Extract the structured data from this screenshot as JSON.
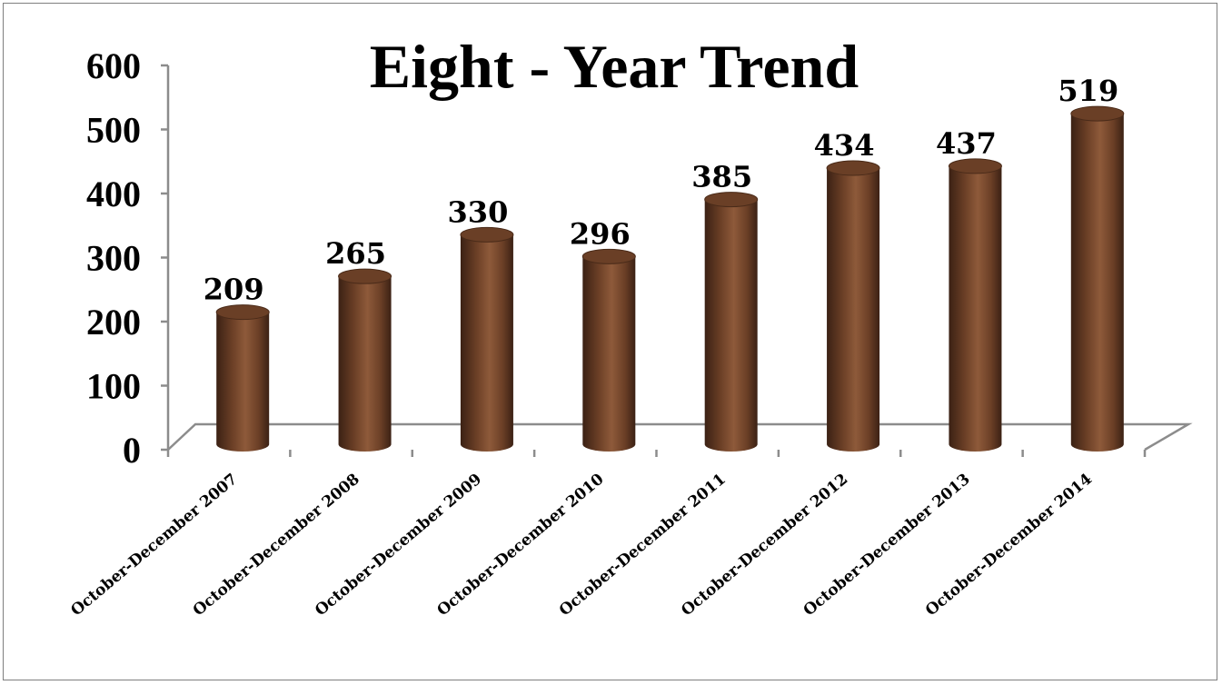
{
  "chart_data": {
    "type": "bar",
    "style": "3d-cylinder",
    "title": "Eight - Year Trend",
    "xlabel": "",
    "ylabel": "",
    "categories": [
      "October-December 2007",
      "October-December 2008",
      "October-December 2009",
      "October-December 2010",
      "October-December 2011",
      "October-December 2012",
      "October-December 2013",
      "October-December 2014"
    ],
    "values": [
      209,
      265,
      330,
      296,
      385,
      434,
      437,
      519
    ],
    "ylim": [
      0,
      600
    ],
    "yticks": [
      0,
      100,
      200,
      300,
      400,
      500,
      600
    ],
    "data_labels": true,
    "legend": "none",
    "grid": false,
    "colors": {
      "bar_dark": "#3b2114",
      "bar_mid": "#7a4a2e",
      "bar_light": "#8e5a3a",
      "bar_top": "#6a3f26",
      "axis": "#8c8c8c"
    }
  }
}
